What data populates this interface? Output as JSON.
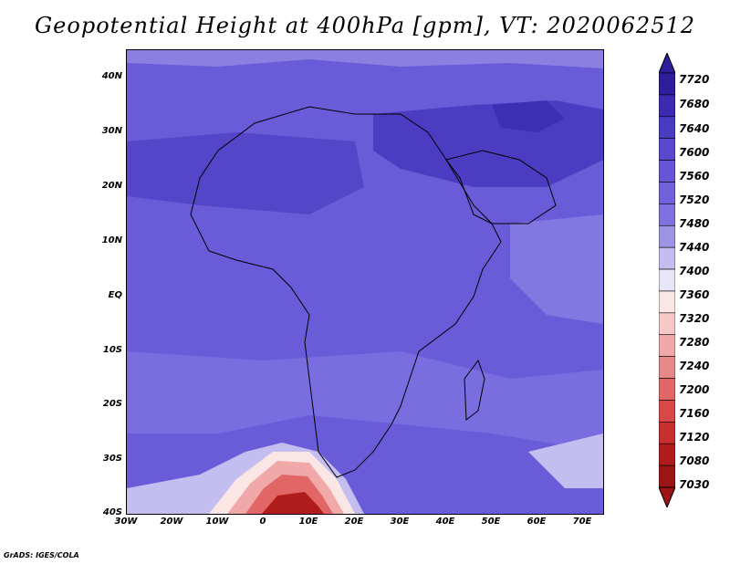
{
  "title": "Geopotential Height at 400hPa [gpm], VT: 2020062512",
  "credit": "GrADS: IGES/COLA",
  "map": {
    "projection": "latlon",
    "lon_range": [
      -30,
      75
    ],
    "lat_range": [
      -40,
      45
    ],
    "lon_ticks": [
      "30W",
      "20W",
      "10W",
      "0",
      "10E",
      "20E",
      "30E",
      "40E",
      "50E",
      "60E",
      "70E"
    ],
    "lat_ticks": [
      "40N",
      "30N",
      "20N",
      "10N",
      "EQ",
      "10S",
      "20S",
      "30S",
      "40S"
    ],
    "field": "geopotential height",
    "level": "400hPa",
    "units": "gpm",
    "valid_time": "2020062512"
  },
  "colorbar": {
    "levels": [
      "7720",
      "7680",
      "7640",
      "7600",
      "7560",
      "7520",
      "7480",
      "7440",
      "7400",
      "7360",
      "7320",
      "7280",
      "7240",
      "7200",
      "7160",
      "7120",
      "7080",
      "7030"
    ],
    "colors": [
      "#2e1e9e",
      "#3a2bb0",
      "#4a3cc2",
      "#5849cf",
      "#6456d6",
      "#7062dc",
      "#7e71e0",
      "#9d94e6",
      "#c3beef",
      "#e7e5f8",
      "#fbe6e6",
      "#f6c8c8",
      "#f0a8a8",
      "#e98888",
      "#e26666",
      "#d84848",
      "#c83030",
      "#b01c1c",
      "#9c1414"
    ]
  }
}
